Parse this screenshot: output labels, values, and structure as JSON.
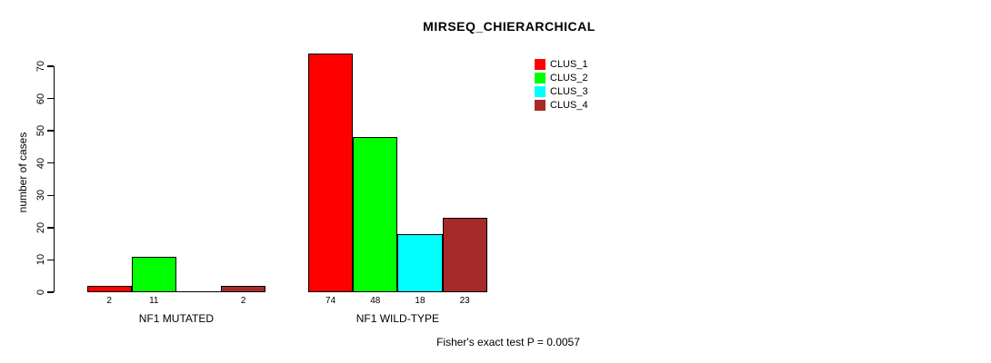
{
  "title": "MIRSEQ_CHIERARCHICAL",
  "footer": "Fisher's exact test P = 0.0057",
  "chart_data": {
    "type": "bar",
    "title": "MIRSEQ_CHIERARCHICAL",
    "xlabel": "",
    "ylabel": "number of cases",
    "categories": [
      "NF1 MUTATED",
      "NF1 WILD-TYPE"
    ],
    "series": [
      {
        "name": "CLUS_1",
        "color": "#ff0000",
        "values": [
          2,
          74
        ]
      },
      {
        "name": "CLUS_2",
        "color": "#00ff00",
        "values": [
          11,
          48
        ]
      },
      {
        "name": "CLUS_3",
        "color": "#00ffff",
        "values": [
          0,
          18
        ]
      },
      {
        "name": "CLUS_4",
        "color": "#a52a2a",
        "values": [
          2,
          23
        ]
      }
    ],
    "bar_labels": [
      [
        "2",
        "11",
        "",
        "2"
      ],
      [
        "74",
        "48",
        "18",
        "23"
      ]
    ],
    "yticks": [
      0,
      10,
      20,
      30,
      40,
      50,
      60,
      70
    ],
    "ylim": [
      0,
      74
    ],
    "grid": false,
    "legend_position": "top-right",
    "annotation": "Fisher's exact test P = 0.0057",
    "bar_border_color": "#000000",
    "axis_color": "#000000"
  }
}
